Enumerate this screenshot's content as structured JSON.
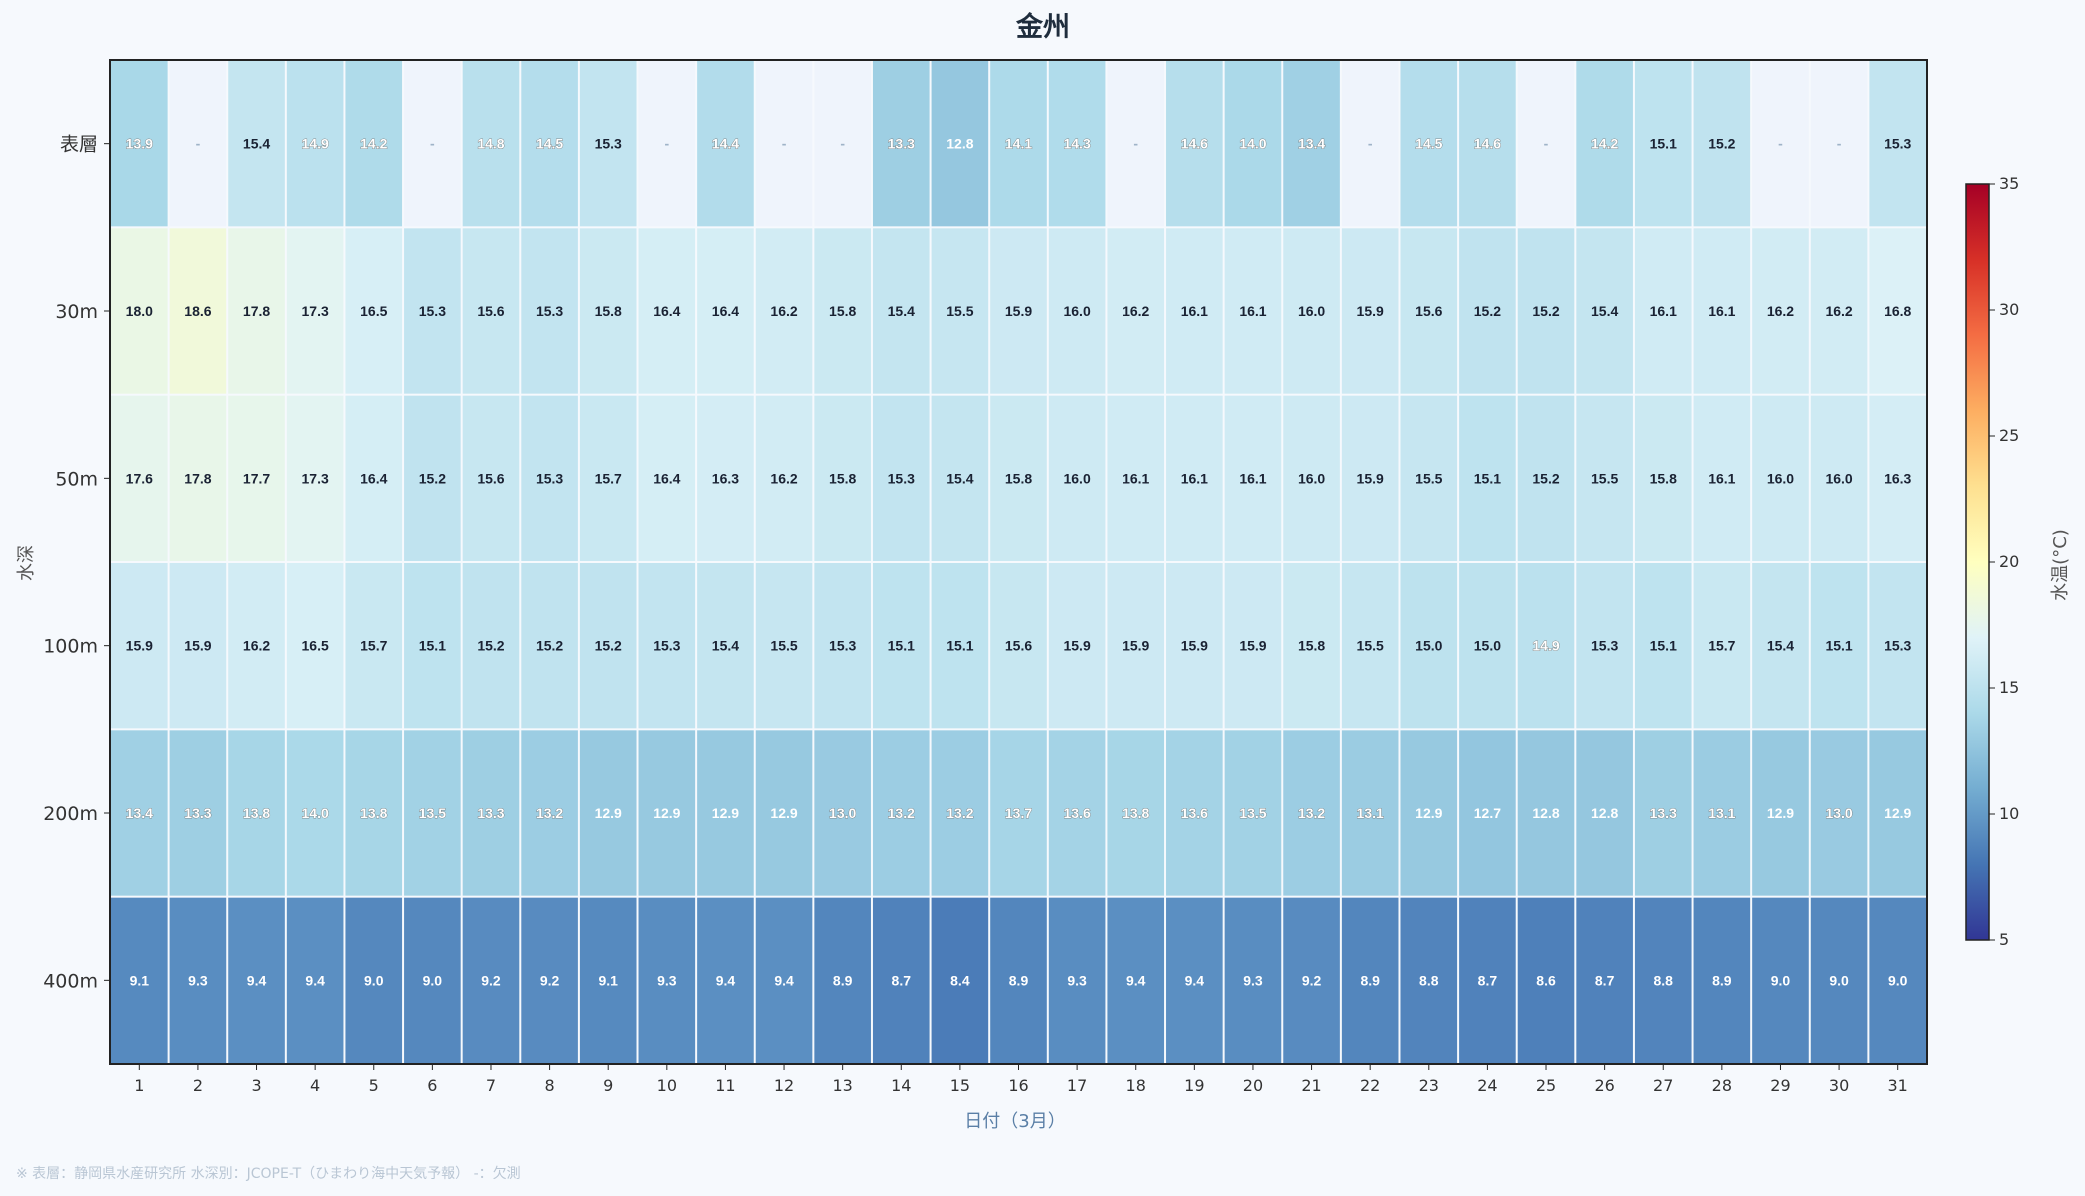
{
  "chart_data": {
    "type": "heatmap",
    "title": "金州",
    "xlabel": "日付（3月）",
    "ylabel": "水深",
    "colorbar_label": "水温(°C)",
    "colorbar_ticks": [
      "5",
      "10",
      "15",
      "20",
      "25",
      "30",
      "35"
    ],
    "colorbar_range": [
      5,
      35
    ],
    "colormap": "RdYlBu_r",
    "missing_label": "-",
    "missing_color": "#eff4fc",
    "x": [
      "1",
      "2",
      "3",
      "4",
      "5",
      "6",
      "7",
      "8",
      "9",
      "10",
      "11",
      "12",
      "13",
      "14",
      "15",
      "16",
      "17",
      "18",
      "19",
      "20",
      "21",
      "22",
      "23",
      "24",
      "25",
      "26",
      "27",
      "28",
      "29",
      "30",
      "31"
    ],
    "y": [
      "表層",
      "30m",
      "50m",
      "100m",
      "200m",
      "400m"
    ],
    "values": [
      [
        13.9,
        null,
        15.4,
        14.9,
        14.2,
        null,
        14.8,
        14.5,
        15.3,
        null,
        14.4,
        null,
        null,
        13.3,
        12.8,
        14.1,
        14.3,
        null,
        14.6,
        14.0,
        13.4,
        null,
        14.5,
        14.6,
        null,
        14.2,
        15.1,
        15.2,
        null,
        null,
        15.3
      ],
      [
        18.0,
        18.6,
        17.8,
        17.3,
        16.5,
        15.3,
        15.6,
        15.3,
        15.8,
        16.4,
        16.4,
        16.2,
        15.8,
        15.4,
        15.5,
        15.9,
        16.0,
        16.2,
        16.1,
        16.1,
        16.0,
        15.9,
        15.6,
        15.2,
        15.2,
        15.4,
        16.1,
        16.1,
        16.2,
        16.2,
        16.8
      ],
      [
        17.6,
        17.8,
        17.7,
        17.3,
        16.4,
        15.2,
        15.6,
        15.3,
        15.7,
        16.4,
        16.3,
        16.2,
        15.8,
        15.3,
        15.4,
        15.8,
        16.0,
        16.1,
        16.1,
        16.1,
        16.0,
        15.9,
        15.5,
        15.1,
        15.2,
        15.5,
        15.8,
        16.1,
        16.0,
        16.0,
        16.3
      ],
      [
        15.9,
        15.9,
        16.2,
        16.5,
        15.7,
        15.1,
        15.2,
        15.2,
        15.2,
        15.3,
        15.4,
        15.5,
        15.3,
        15.1,
        15.1,
        15.6,
        15.9,
        15.9,
        15.9,
        15.9,
        15.8,
        15.5,
        15.0,
        15.0,
        14.9,
        15.3,
        15.1,
        15.7,
        15.4,
        15.1,
        15.3
      ],
      [
        13.4,
        13.3,
        13.8,
        14.0,
        13.8,
        13.5,
        13.3,
        13.2,
        12.9,
        12.9,
        12.9,
        12.9,
        13.0,
        13.2,
        13.2,
        13.7,
        13.6,
        13.8,
        13.6,
        13.5,
        13.2,
        13.1,
        12.9,
        12.7,
        12.8,
        12.8,
        13.3,
        13.1,
        12.9,
        13.0,
        12.9
      ],
      [
        9.1,
        9.3,
        9.4,
        9.4,
        9.0,
        9.0,
        9.2,
        9.2,
        9.1,
        9.3,
        9.4,
        9.4,
        8.9,
        8.7,
        8.4,
        8.9,
        9.3,
        9.4,
        9.4,
        9.3,
        9.2,
        8.9,
        8.8,
        8.7,
        8.6,
        8.7,
        8.8,
        8.9,
        9.0,
        9.0,
        9.0
      ]
    ],
    "footnote": "※ 表層：静岡県水産研究所  水深別：JCOPE-T（ひまわり海中天気予報）  -：欠測"
  }
}
